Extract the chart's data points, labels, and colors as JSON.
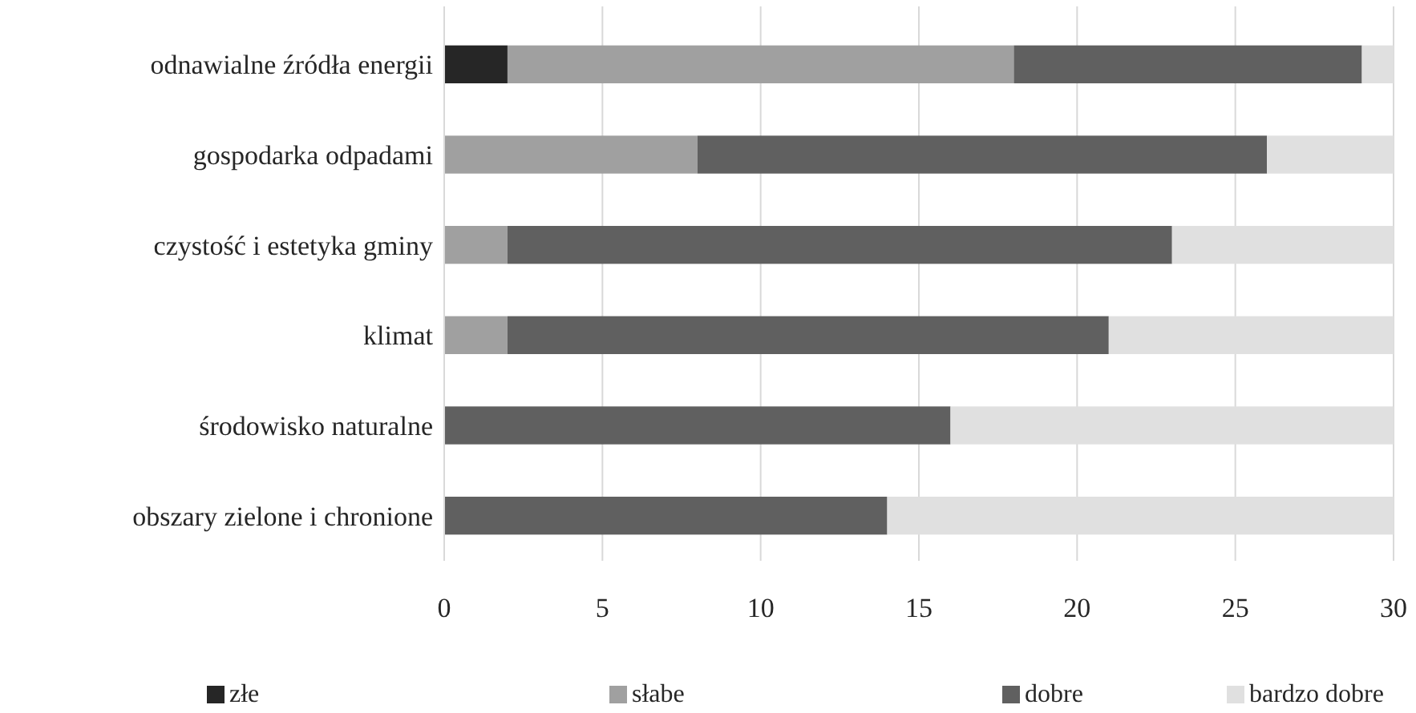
{
  "chart_data": {
    "type": "bar",
    "orientation": "horizontal",
    "stacked": true,
    "categories": [
      "odnawialne źródła energii",
      "gospodarka odpadami",
      "czystość i estetyka gminy",
      "klimat",
      "środowisko naturalne",
      "obszary zielone i chronione"
    ],
    "series": [
      {
        "name": "złe",
        "color": "#262626",
        "values": [
          2,
          0,
          0,
          0,
          0,
          0
        ]
      },
      {
        "name": "słabe",
        "color": "#a0a0a0",
        "values": [
          16,
          8,
          2,
          2,
          0,
          0
        ]
      },
      {
        "name": "dobre",
        "color": "#606060",
        "values": [
          11,
          18,
          21,
          19,
          16,
          14
        ]
      },
      {
        "name": "bardzo dobre",
        "color": "#e0e0e0",
        "values": [
          1,
          4,
          7,
          9,
          14,
          16
        ]
      }
    ],
    "xlim": [
      0,
      30
    ],
    "xticks": [
      0,
      5,
      10,
      15,
      20,
      25,
      30
    ],
    "grid": "x",
    "legend": "bottom"
  }
}
